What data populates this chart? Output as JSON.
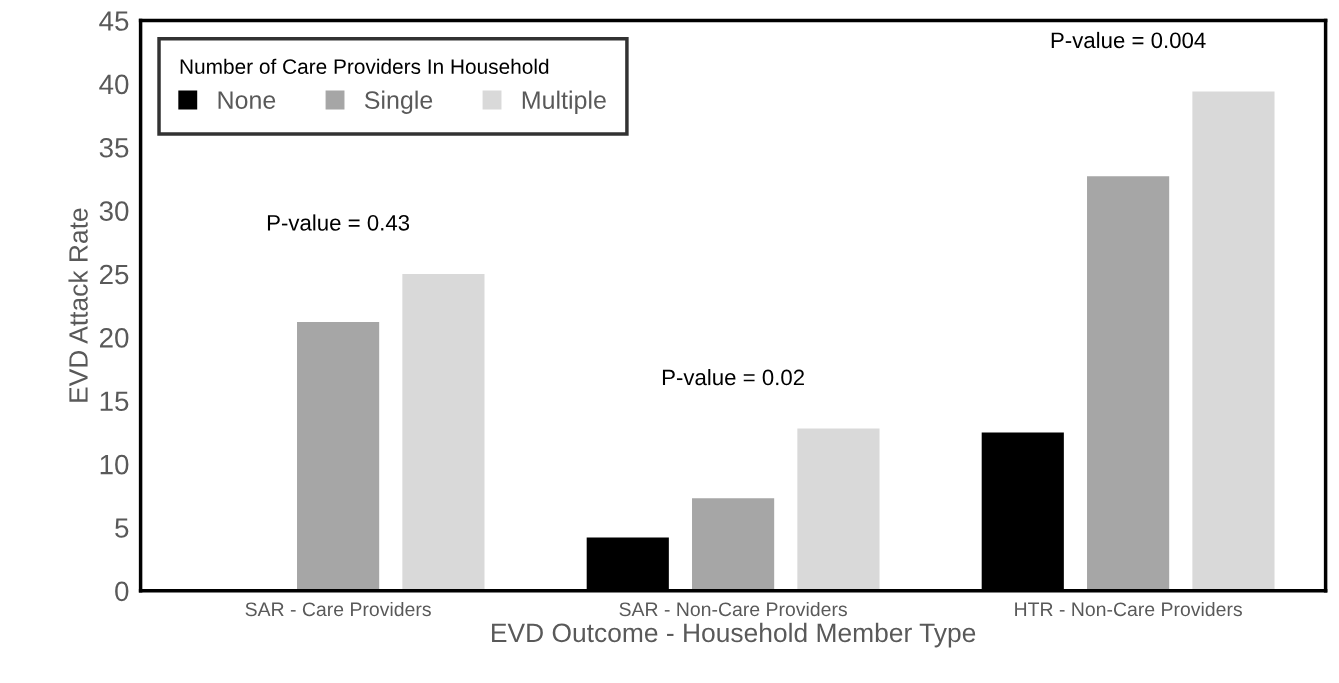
{
  "chart_data": {
    "type": "bar",
    "xlabel": "EVD Outcome - Household Member Type",
    "ylabel": "EVD Attack Rate",
    "legend_title": "Number of Care Providers In Household",
    "categories": [
      "SAR - Care Providers",
      "SAR - Non-Care Providers",
      "HTR - Non-Care Providers"
    ],
    "series": [
      {
        "name": "None",
        "color": "#000000",
        "values": [
          0,
          4.2,
          12.5
        ]
      },
      {
        "name": "Single",
        "color": "#a6a6a6",
        "values": [
          21.2,
          7.3,
          32.7
        ]
      },
      {
        "name": "Multiple",
        "color": "#d9d9d9",
        "values": [
          25.0,
          12.8,
          39.4
        ]
      }
    ],
    "ylim": [
      0,
      45
    ],
    "yticks": [
      0,
      5,
      10,
      15,
      20,
      25,
      30,
      35,
      40,
      45
    ],
    "grid": false,
    "legend": "top left",
    "annotations": [
      "P-value = 0.43",
      "P-value = 0.02",
      "P-value = 0.004"
    ]
  }
}
